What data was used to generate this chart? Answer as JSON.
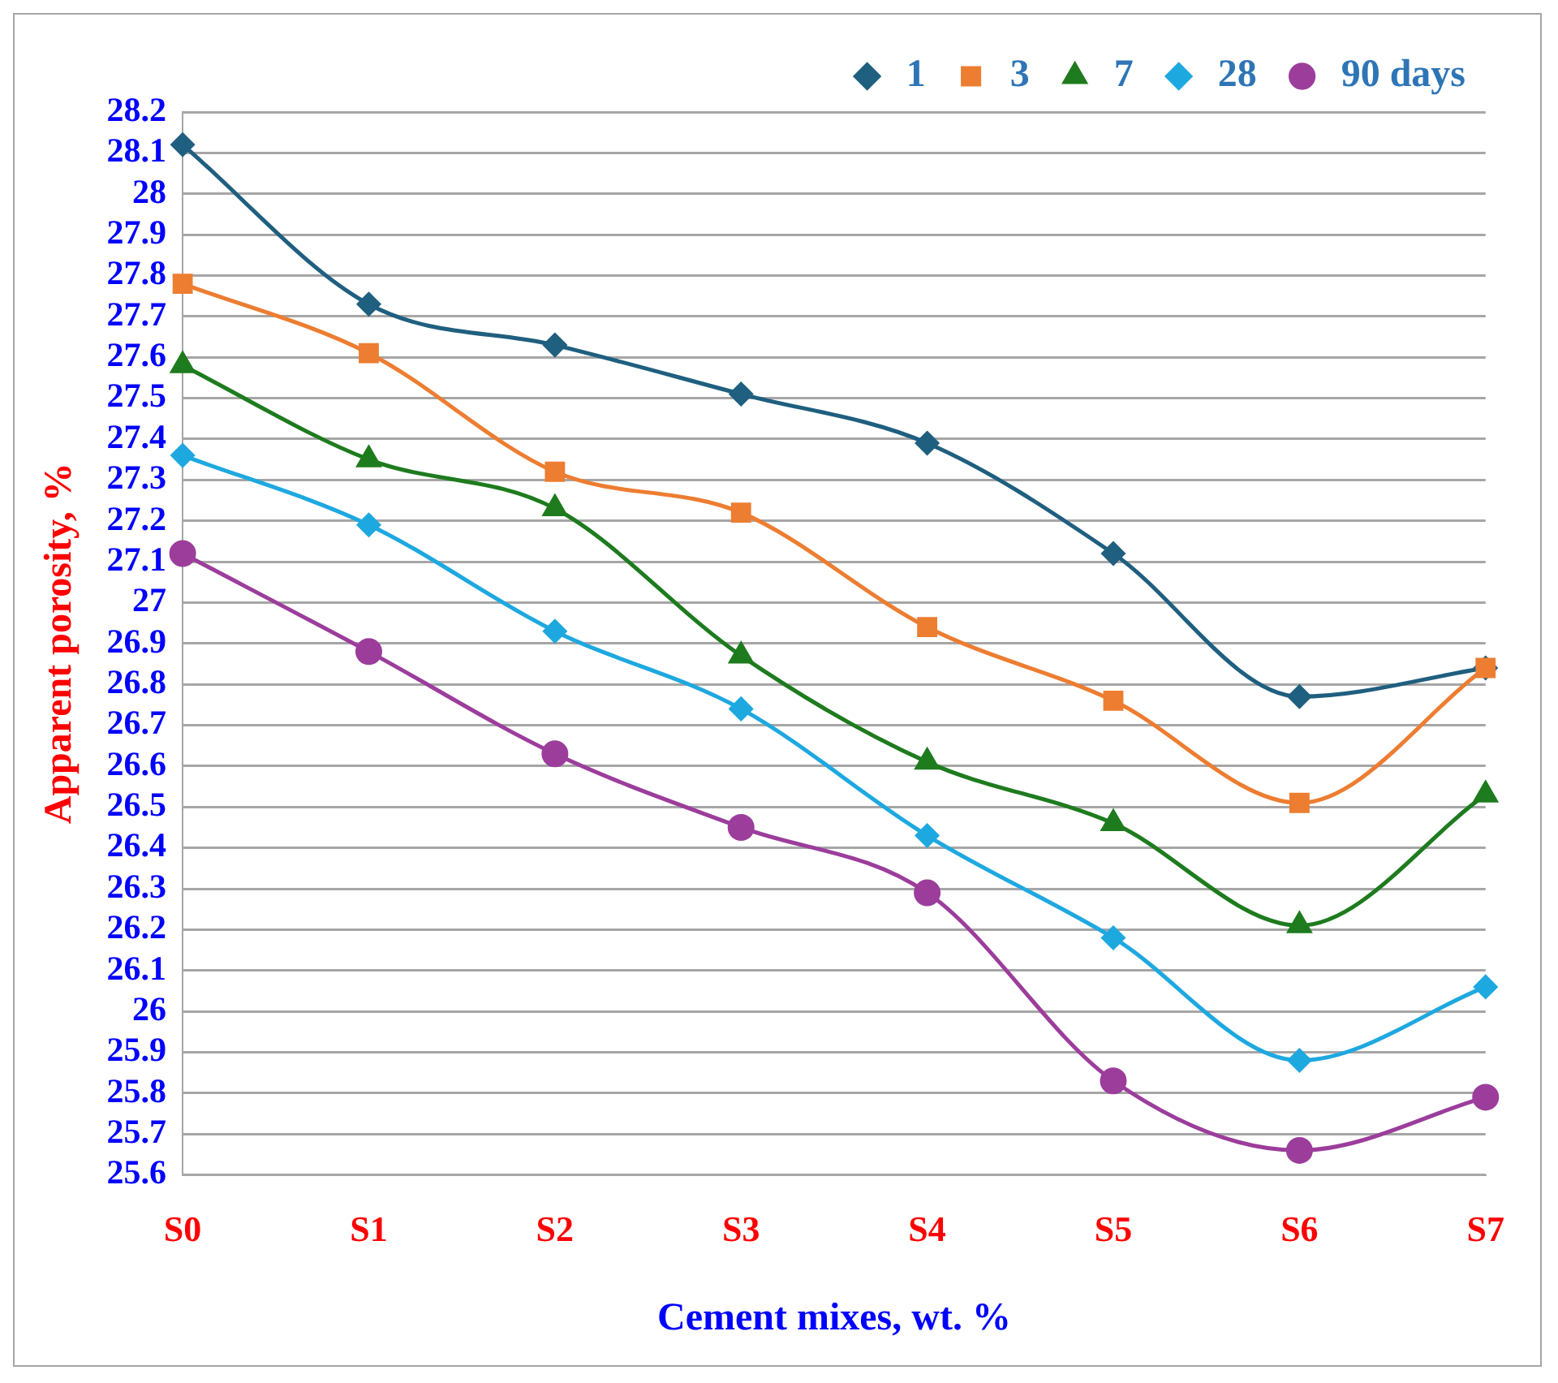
{
  "chart_data": {
    "type": "line",
    "xlabel": "Cement mixes, wt. %",
    "ylabel": "Apparent porosity, %",
    "categories": [
      "S0",
      "S1",
      "S2",
      "S3",
      "S4",
      "S5",
      "S6",
      "S7"
    ],
    "series": [
      {
        "name": "1",
        "color": "#1f5f7f",
        "marker": "diamond",
        "values": [
          28.12,
          27.73,
          27.63,
          27.51,
          27.39,
          27.12,
          26.77,
          26.84
        ]
      },
      {
        "name": "3",
        "color": "#ed7d31",
        "marker": "square",
        "values": [
          27.78,
          27.61,
          27.32,
          27.22,
          26.94,
          26.76,
          26.51,
          26.84
        ]
      },
      {
        "name": "7",
        "color": "#1e7b1e",
        "marker": "triangle",
        "values": [
          27.58,
          27.35,
          27.23,
          26.87,
          26.61,
          26.46,
          26.21,
          26.53
        ]
      },
      {
        "name": "28",
        "color": "#1ea8e0",
        "marker": "diamond",
        "values": [
          27.36,
          27.19,
          26.93,
          26.74,
          26.43,
          26.18,
          25.88,
          26.06
        ]
      },
      {
        "name": "90 days",
        "color": "#9c3d9c",
        "marker": "circle",
        "values": [
          27.12,
          26.88,
          26.63,
          26.45,
          26.29,
          25.83,
          25.66,
          25.79
        ]
      }
    ],
    "ylim": [
      25.6,
      28.2
    ],
    "yticks": [
      25.6,
      25.7,
      25.8,
      25.9,
      26,
      26.1,
      26.2,
      26.3,
      26.4,
      26.5,
      26.6,
      26.7,
      26.8,
      26.9,
      27,
      27.1,
      27.2,
      27.3,
      27.4,
      27.5,
      27.6,
      27.7,
      27.8,
      27.9,
      28,
      28.1,
      28.2
    ],
    "grid": "y",
    "legend": "top right",
    "line_style": "solid"
  }
}
